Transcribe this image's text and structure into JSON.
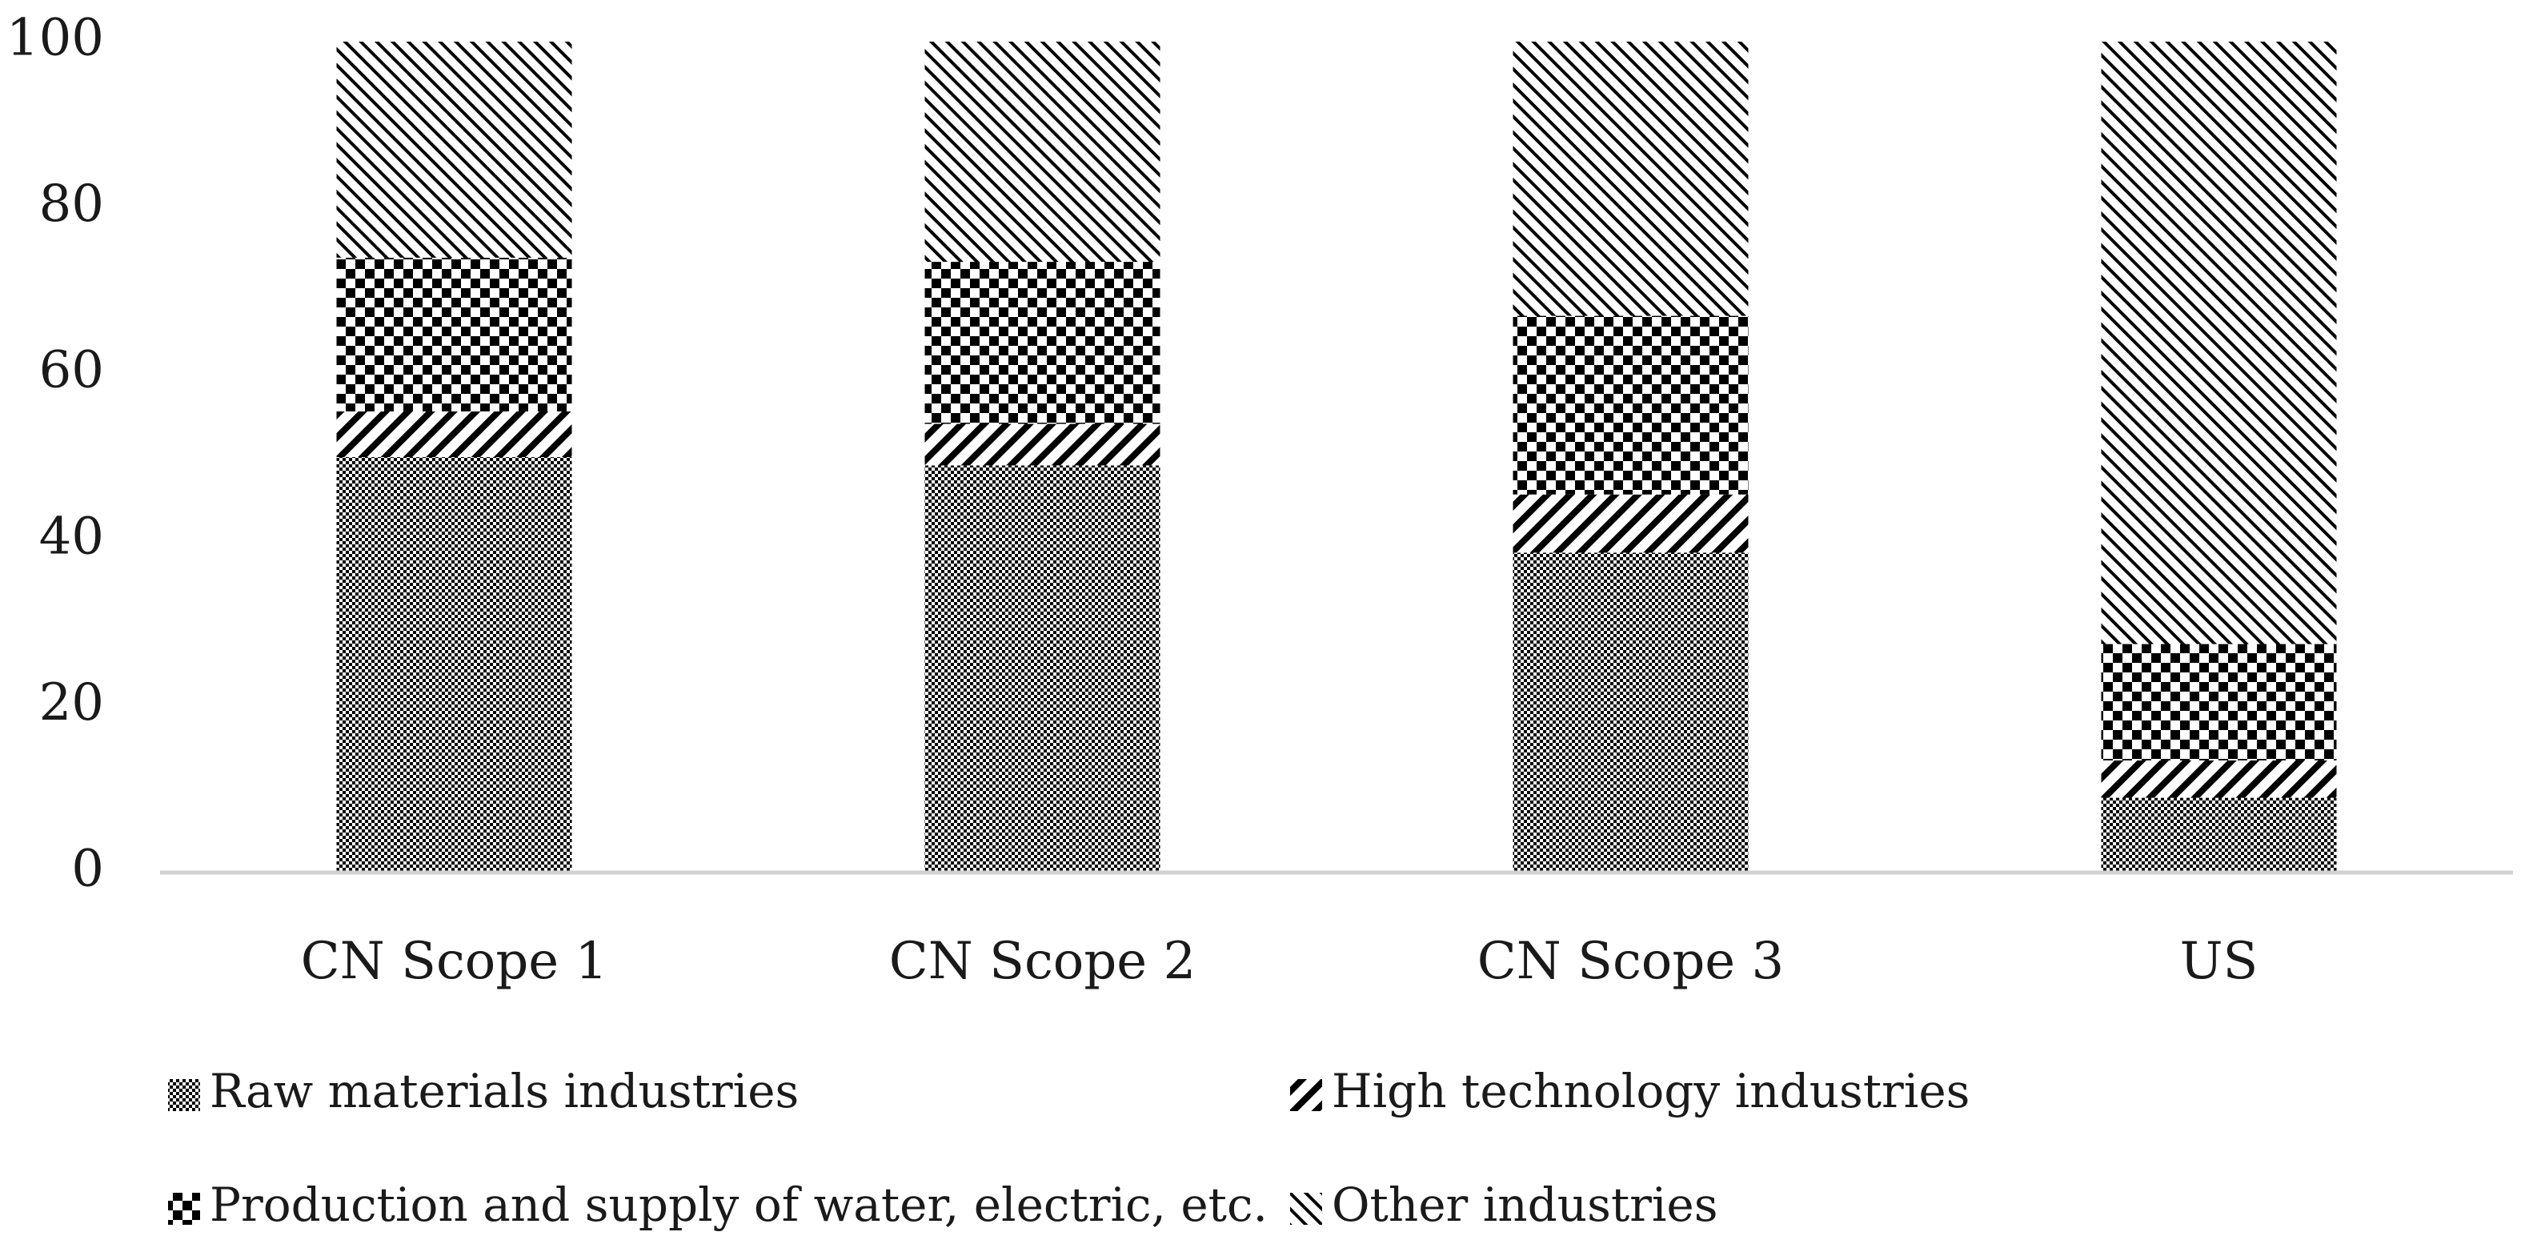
{
  "chart_data": {
    "type": "bar",
    "stacked": true,
    "title": "",
    "xlabel": "",
    "ylabel": "",
    "ylim": [
      0,
      100
    ],
    "yticks": [
      0,
      20,
      40,
      60,
      80,
      100
    ],
    "grid": false,
    "legend_position": "bottom",
    "categories": [
      "CN Scope 1",
      "CN Scope 2",
      "CN Scope 3",
      "US"
    ],
    "series": [
      {
        "name": "Raw materials industries",
        "pattern": "fine-checker",
        "values": [
          50,
          49,
          38.5,
          9
        ]
      },
      {
        "name": "High technology industries",
        "pattern": "diagonal-stripes",
        "values": [
          5.5,
          5,
          7,
          4.5
        ]
      },
      {
        "name": "Production and supply of water, electric, etc.",
        "pattern": "coarse-checker",
        "values": [
          18.5,
          19.5,
          21.5,
          14
        ]
      },
      {
        "name": "Other industries",
        "pattern": "fine-diagonal",
        "values": [
          26,
          26.5,
          33,
          72.5
        ]
      }
    ],
    "colors": {
      "ink": "#000000",
      "background": "#ffffff",
      "axis": "#d0d0d0",
      "text": "#1a1a1a"
    }
  }
}
